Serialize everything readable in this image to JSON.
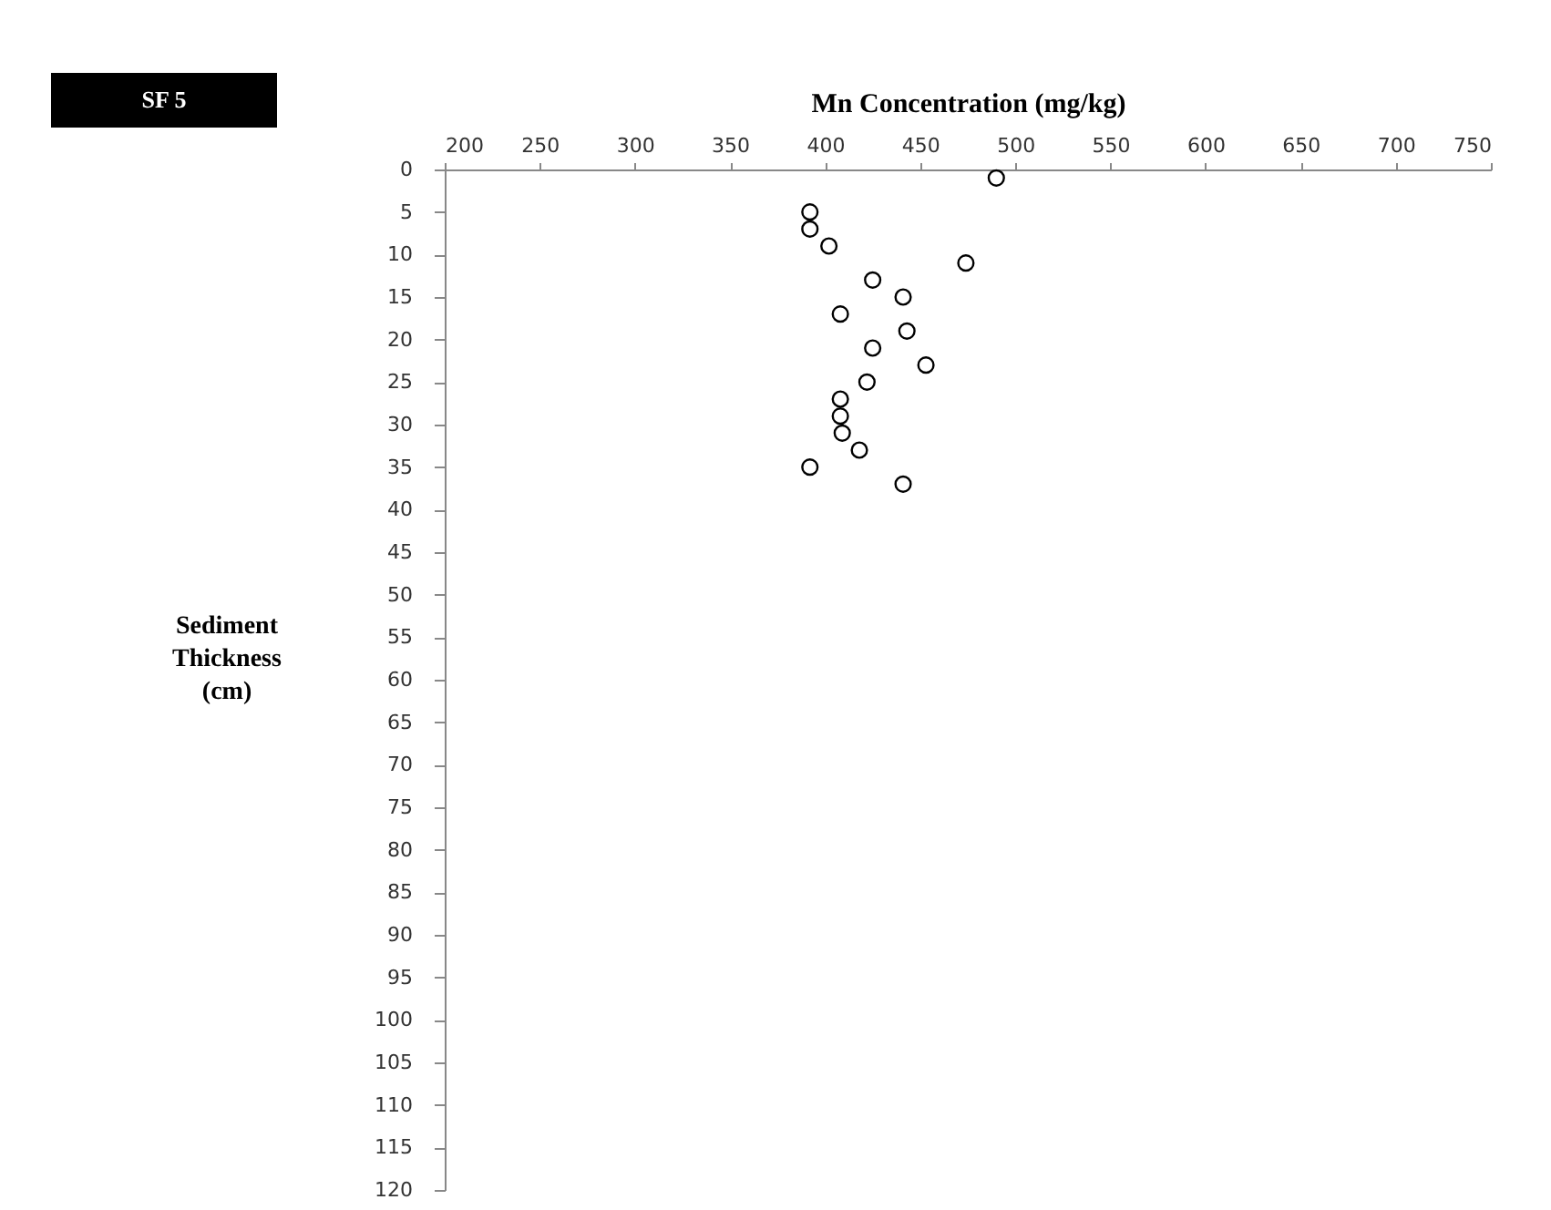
{
  "chart_data": {
    "type": "scatter",
    "xlabel": "Mn Concentration (mg/kg)",
    "ylabel": "Sediment Thickness (cm)",
    "annotations": [
      "SF 5"
    ],
    "x": [
      490,
      392,
      392,
      402,
      474,
      425,
      441,
      408,
      443,
      425,
      453,
      422,
      408,
      408,
      409,
      418,
      392,
      441
    ],
    "values": [
      1,
      5,
      7,
      9,
      11,
      13,
      15,
      17,
      19,
      21,
      23,
      25,
      27,
      29,
      31,
      33,
      35,
      37
    ],
    "color": "#000000",
    "marker": "circle",
    "grid": false,
    "xlim": [
      200,
      750
    ],
    "xticks": [
      200,
      250,
      300,
      350,
      400,
      450,
      500,
      550,
      600,
      650,
      700,
      750
    ],
    "ylim": [
      120,
      0
    ],
    "yticks": [
      0,
      5,
      10,
      15,
      20,
      25,
      30,
      35,
      40,
      45,
      50,
      55,
      60,
      65,
      70,
      75,
      80,
      85,
      90,
      95,
      100,
      105,
      110,
      115,
      120
    ]
  }
}
